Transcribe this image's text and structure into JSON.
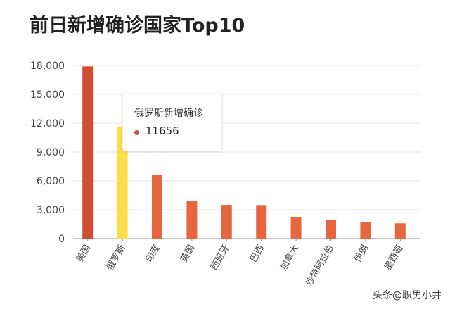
{
  "chart_data": {
    "type": "bar",
    "title": "前日新增确诊国家Top10",
    "categories": [
      "美国",
      "俄罗斯",
      "印度",
      "英国",
      "西班牙",
      "巴西",
      "加拿大",
      "沙特阿拉伯",
      "伊朗",
      "墨西哥"
    ],
    "values": [
      17900,
      11656,
      6660,
      3880,
      3510,
      3490,
      2270,
      1980,
      1680,
      1590
    ],
    "ylim": [
      0,
      18000
    ],
    "yticks": [
      0,
      3000,
      6000,
      9000,
      12000,
      15000,
      18000
    ],
    "ytick_labels": [
      "0",
      "3,000",
      "6,000",
      "9,000",
      "12,000",
      "15,000",
      "18,000"
    ],
    "grid": true,
    "colors": {
      "default": "#e8663f",
      "top": "#cf4f35",
      "highlight": "#fbde47"
    },
    "highlight_index": 1,
    "tooltip": {
      "title": "俄罗斯新增确诊",
      "value": "11656",
      "dot_color": "#c0543c"
    }
  },
  "watermark": "头条@职男小井"
}
